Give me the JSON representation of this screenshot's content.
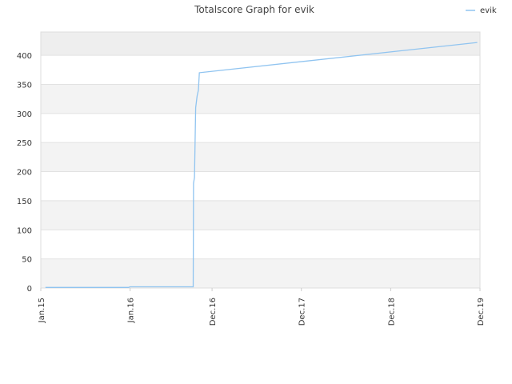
{
  "chart_data": {
    "type": "line",
    "title": "Totalscore Graph for evik",
    "xlabel": "",
    "ylabel": "",
    "legend_position": "top-right",
    "grid": true,
    "x_tick_labels": [
      "Jan.15",
      "Jan.16",
      "Dec.16",
      "Dec.17",
      "Dec.18",
      "Dec.19"
    ],
    "x_tick_dates": [
      "2015-01-01",
      "2016-01-01",
      "2016-12-01",
      "2017-12-01",
      "2018-12-01",
      "2019-12-01"
    ],
    "xlim": [
      "2015-01-01",
      "2019-12-01"
    ],
    "ylim": [
      0,
      440
    ],
    "y_ticks": [
      0,
      50,
      100,
      150,
      200,
      250,
      300,
      350,
      400
    ],
    "series": [
      {
        "name": "evik",
        "color": "#90c4f0",
        "points": [
          [
            "2015-01-20",
            1
          ],
          [
            "2015-12-25",
            1
          ],
          [
            "2016-01-01",
            2
          ],
          [
            "2016-09-15",
            2
          ],
          [
            "2016-09-16",
            180
          ],
          [
            "2016-09-20",
            190
          ],
          [
            "2016-09-25",
            310
          ],
          [
            "2016-10-01",
            330
          ],
          [
            "2016-10-06",
            340
          ],
          [
            "2016-10-10",
            370
          ],
          [
            "2019-11-20",
            422
          ]
        ]
      }
    ]
  }
}
